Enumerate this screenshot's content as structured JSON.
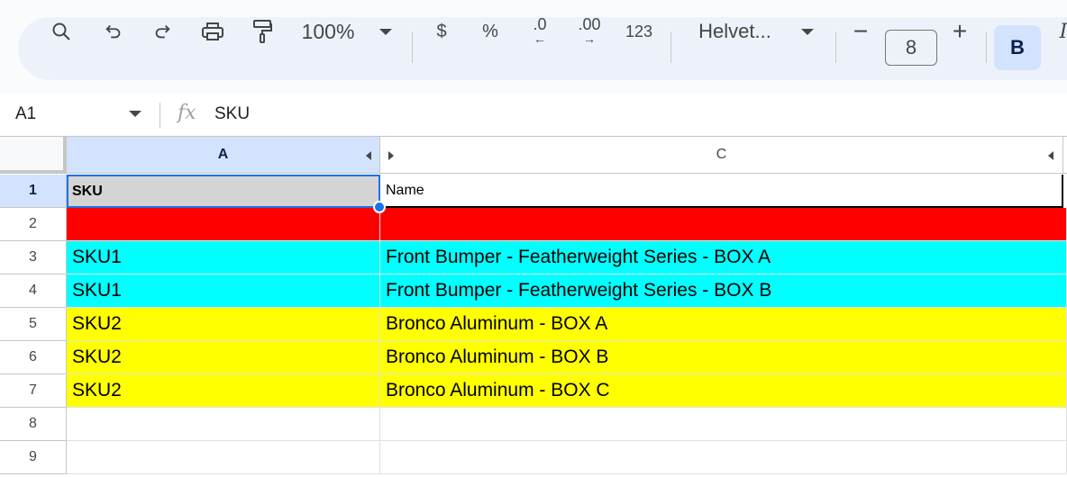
{
  "toolbar": {
    "zoom": "100%",
    "currency": "$",
    "percent": "%",
    "decrease_decimal": ".0",
    "increase_decimal": ".00",
    "number_format": "123",
    "font": "Helvet...",
    "font_size": "8",
    "minus": "−",
    "plus": "+",
    "bold": "B"
  },
  "formula_bar": {
    "name_box": "A1",
    "fx": "fx",
    "value": "SKU"
  },
  "columns": [
    "A",
    "C"
  ],
  "rows": [
    {
      "num": "1",
      "a": "SKU",
      "c": "Name",
      "color": "#ffffff"
    },
    {
      "num": "2",
      "a": "",
      "c": "",
      "color": "#ff0000"
    },
    {
      "num": "3",
      "a": "SKU1",
      "c": "Front Bumper - Featherweight Series - BOX A",
      "color": "#00ffff"
    },
    {
      "num": "4",
      "a": "SKU1",
      "c": "Front Bumper - Featherweight Series - BOX B",
      "color": "#00ffff"
    },
    {
      "num": "5",
      "a": "SKU2",
      "c": "Bronco Aluminum - BOX A",
      "color": "#ffff00"
    },
    {
      "num": "6",
      "a": "SKU2",
      "c": "Bronco Aluminum - BOX B",
      "color": "#ffff00"
    },
    {
      "num": "7",
      "a": "SKU2",
      "c": "Bronco Aluminum - BOX C",
      "color": "#ffff00"
    },
    {
      "num": "8",
      "a": "",
      "c": "",
      "color": "#ffffff"
    },
    {
      "num": "9",
      "a": "",
      "c": "",
      "color": "#ffffff"
    }
  ],
  "selected_cell_color": "#d4d4d4"
}
